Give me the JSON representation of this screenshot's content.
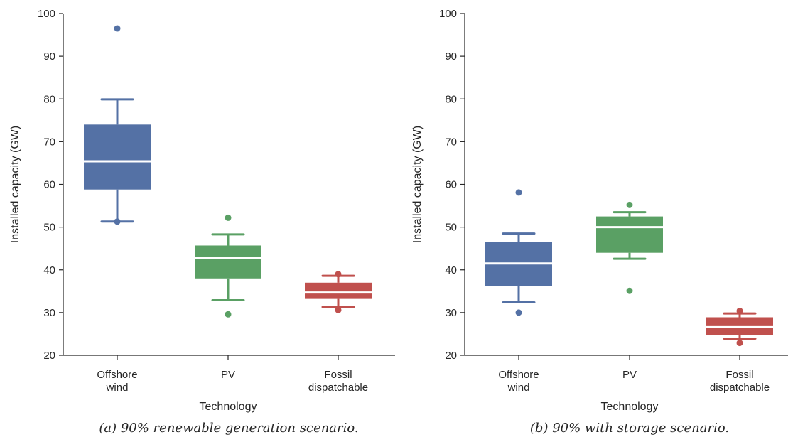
{
  "chart_data": [
    {
      "type": "box",
      "caption": "(a) 90% renewable generation scenario.",
      "xlabel": "Technology",
      "ylabel": "Installed capacity (GW)",
      "ylim": [
        20,
        100
      ],
      "yticks": [
        20,
        30,
        40,
        50,
        60,
        70,
        80,
        90,
        100
      ],
      "grid": false,
      "categories": [
        {
          "label_lines": [
            "Offshore",
            "wind"
          ],
          "color": "#5471a5",
          "whisker_low": 51.3,
          "q1": 58.8,
          "median": 65.4,
          "q3": 74.0,
          "whisker_high": 79.9,
          "outliers": [
            96.5,
            51.3
          ]
        },
        {
          "label_lines": [
            "PV"
          ],
          "color": "#5aa064",
          "whisker_low": 32.9,
          "q1": 38.0,
          "median": 42.8,
          "q3": 45.7,
          "whisker_high": 48.3,
          "outliers": [
            52.2,
            29.6
          ]
        },
        {
          "label_lines": [
            "Fossil",
            "dispatchable"
          ],
          "color": "#c0504d",
          "whisker_low": 31.3,
          "q1": 33.2,
          "median": 34.7,
          "q3": 37.0,
          "whisker_high": 38.6,
          "outliers": [
            39.0,
            30.6
          ]
        }
      ]
    },
    {
      "type": "box",
      "caption": "(b) 90% with storage scenario.",
      "xlabel": "Technology",
      "ylabel": "Installed capacity (GW)",
      "ylim": [
        20,
        100
      ],
      "yticks": [
        20,
        30,
        40,
        50,
        60,
        70,
        80,
        90,
        100
      ],
      "grid": false,
      "categories": [
        {
          "label_lines": [
            "Offshore",
            "wind"
          ],
          "color": "#5471a5",
          "whisker_low": 32.4,
          "q1": 36.3,
          "median": 41.5,
          "q3": 46.5,
          "whisker_high": 48.5,
          "outliers": [
            58.1,
            30.0
          ]
        },
        {
          "label_lines": [
            "PV"
          ],
          "color": "#5aa064",
          "whisker_low": 42.6,
          "q1": 44.0,
          "median": 50.0,
          "q3": 52.5,
          "whisker_high": 53.5,
          "outliers": [
            55.2,
            35.1
          ]
        },
        {
          "label_lines": [
            "Fossil",
            "dispatchable"
          ],
          "color": "#c0504d",
          "whisker_low": 23.9,
          "q1": 24.7,
          "median": 26.6,
          "q3": 28.9,
          "whisker_high": 29.8,
          "outliers": [
            30.4,
            22.9
          ]
        }
      ]
    }
  ]
}
